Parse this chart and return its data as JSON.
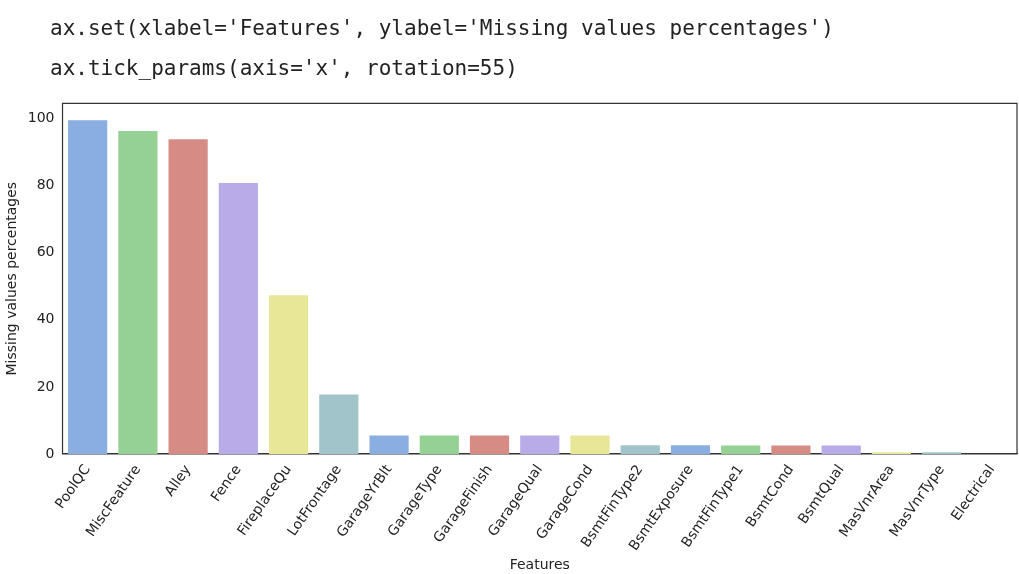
{
  "chart_data": {
    "type": "bar",
    "annotations": [
      "ax.set(xlabel='Features', ylabel='Missing values percentages')",
      "ax.tick_params(axis='x', rotation=55)"
    ],
    "xlabel": "Features",
    "ylabel": "Missing values percentages",
    "categories": [
      "PoolQC",
      "MiscFeature",
      "Alley",
      "Fence",
      "FireplaceQu",
      "LotFrontage",
      "GarageYrBlt",
      "GarageType",
      "GarageFinish",
      "GarageQual",
      "GarageCond",
      "BsmtFinType2",
      "BsmtExposure",
      "BsmtFinType1",
      "BsmtCond",
      "BsmtQual",
      "MasVnrArea",
      "MasVnrType",
      "Electrical"
    ],
    "values": [
      99.5,
      96.3,
      93.8,
      80.8,
      47.3,
      17.7,
      5.5,
      5.5,
      5.5,
      5.5,
      5.5,
      2.6,
      2.6,
      2.5,
      2.5,
      2.5,
      0.5,
      0.5,
      null
    ],
    "colors": [
      "#8aaee0",
      "#95d195",
      "#d68b84",
      "#b8abe8",
      "#e8e697",
      "#a1c4ca",
      "#8aaee0",
      "#95d195",
      "#d68b84",
      "#b8abe8",
      "#e8e697",
      "#a1c4ca",
      "#8aaee0",
      "#95d195",
      "#d68b84",
      "#b8abe8",
      "#e8e697",
      "#a1c4ca",
      "#8aaee0"
    ],
    "ylim": [
      0,
      104.5
    ],
    "yticks": [
      0,
      20,
      40,
      60,
      80,
      100
    ],
    "grid": false,
    "legend": false
  }
}
